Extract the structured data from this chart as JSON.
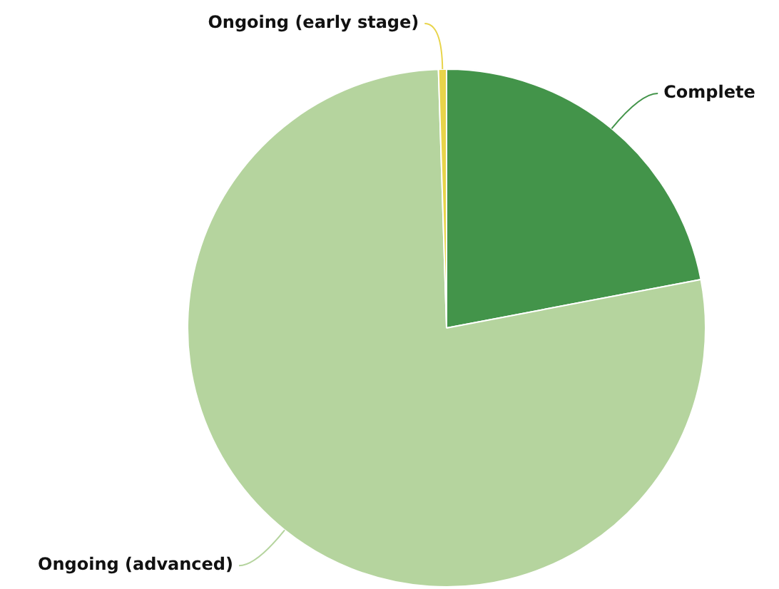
{
  "chart_data": {
    "type": "pie",
    "categories": [
      "Complete",
      "Ongoing (advanced)",
      "Ongoing (early stage)"
    ],
    "values": [
      22,
      77.5,
      0.5
    ],
    "colors": [
      "#43944a",
      "#b5d49e",
      "#e8d44a"
    ],
    "legend": false
  }
}
